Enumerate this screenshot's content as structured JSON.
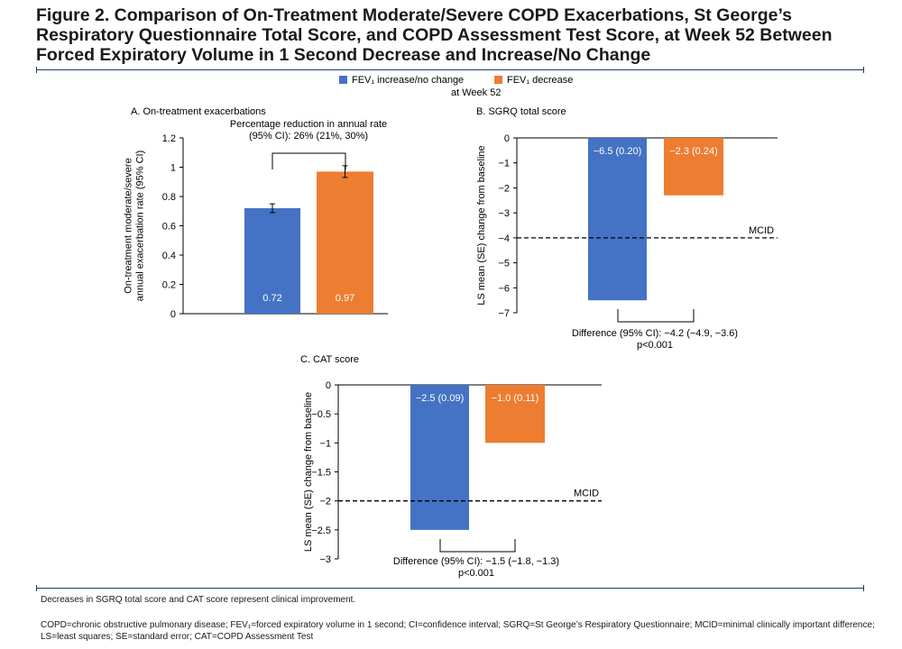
{
  "figure_title": "Figure 2. Comparison of On-Treatment Moderate/Severe COPD Exacerbations, St George’s Respiratory Questionnaire Total Score, and COPD Assessment Test Score, at Week 52 Between Forced Expiratory Volume in 1 Second Decrease and Increase/No Change",
  "legend": {
    "items": [
      {
        "label": "FEV₁ increase/no change",
        "color": "#4472c4"
      },
      {
        "label": "FEV₁ decrease",
        "color": "#ed7d31"
      }
    ],
    "subtitle": "at Week 52"
  },
  "footnotes": {
    "note1": "Decreases in SGRQ total score and CAT score represent clinical improvement.",
    "abbrev_line1": "COPD=chronic obstructive pulmonary disease; FEV₁=forced expiratory volume in 1 second; CI=confidence interval; SGRQ=St George’s Respiratory Questionnaire; MCID=minimal clinically important difference;",
    "abbrev_line2": "LS=least squares; SE=standard error; CAT=COPD Assessment Test"
  },
  "chart_data": [
    {
      "type": "bar",
      "title": "A. On-treatment exacerbations",
      "ylabel": [
        "On-treatment moderate/severe",
        "annual exacerbation rate (95% CI)"
      ],
      "ylim": [
        0,
        1.2
      ],
      "yticks": [
        "0",
        "0.2",
        "0.4",
        "0.6",
        "0.8",
        "1",
        "1.2"
      ],
      "tick_values": [
        0,
        0.2,
        0.4,
        0.6,
        0.8,
        1,
        1.2
      ],
      "series": [
        {
          "name": "FEV₁ increase/no change",
          "value": 0.72,
          "ci": [
            0.69,
            0.75
          ],
          "color": "#4472c4",
          "label": "0.72"
        },
        {
          "name": "FEV₁ decrease",
          "value": 0.97,
          "ci": [
            0.93,
            1.01
          ],
          "color": "#ed7d31",
          "label": "0.97"
        }
      ],
      "annotation": [
        "Percentage reduction in annual rate",
        "(95% CI): 26% (21%, 30%)"
      ]
    },
    {
      "type": "bar",
      "title": "B. SGRQ total score",
      "ylabel": [
        "LS mean (SE) change from baseline"
      ],
      "ylim": [
        -7,
        0
      ],
      "yticks": [
        "0",
        "−1",
        "−2",
        "−3",
        "−4",
        "−5",
        "−6",
        "−7"
      ],
      "tick_values": [
        0,
        -1,
        -2,
        -3,
        -4,
        -5,
        -6,
        -7
      ],
      "series": [
        {
          "name": "FEV₁ increase/no change",
          "value": -6.5,
          "se": 0.2,
          "color": "#4472c4",
          "label": "−6.5 (0.20)"
        },
        {
          "name": "FEV₁ decrease",
          "value": -2.3,
          "se": 0.24,
          "color": "#ed7d31",
          "label": "−2.3 (0.24)"
        }
      ],
      "mcid": {
        "value": -4,
        "label": "MCID"
      },
      "annotation": [
        "Difference (95% CI): −4.2 (−4.9, −3.6)",
        "p<0.001"
      ]
    },
    {
      "type": "bar",
      "title": "C. CAT score",
      "ylabel": [
        "LS mean (SE) change from baseline"
      ],
      "ylim": [
        -3,
        0
      ],
      "yticks": [
        "0",
        "−0.5",
        "−1",
        "−1.5",
        "−2",
        "−2.5",
        "−3"
      ],
      "tick_values": [
        0,
        -0.5,
        -1,
        -1.5,
        -2,
        -2.5,
        -3
      ],
      "series": [
        {
          "name": "FEV₁ increase/no change",
          "value": -2.5,
          "se": 0.09,
          "color": "#4472c4",
          "label": "−2.5 (0.09)"
        },
        {
          "name": "FEV₁ decrease",
          "value": -1.0,
          "se": 0.11,
          "color": "#ed7d31",
          "label": "−1.0 (0.11)"
        }
      ],
      "mcid": {
        "value": -2,
        "label": "MCID"
      },
      "annotation": [
        "Difference (95% CI): −1.5 (−1.8, −1.3)",
        "p<0.001"
      ]
    }
  ]
}
